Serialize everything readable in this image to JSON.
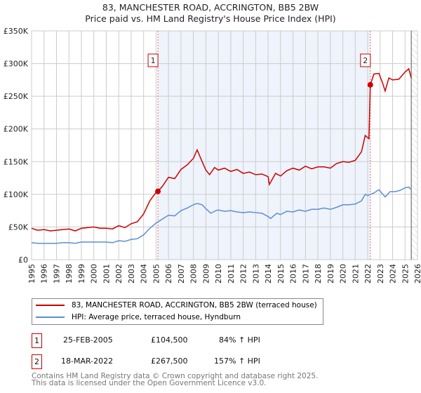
{
  "title": "83, MANCHESTER ROAD, ACCRINGTON, BB5 2BW",
  "subtitle": "Price paid vs. HM Land Registry's House Price Index (HPI)",
  "colors": {
    "property": "#cc0000",
    "hpi": "#5b8fd1",
    "shade": "#eef3fc"
  },
  "chart_data": {
    "type": "line",
    "title": "83, MANCHESTER ROAD, ACCRINGTON, BB5 2BW",
    "xlim": [
      1995,
      2026
    ],
    "ylim": [
      0,
      350000
    ],
    "y_ticks": [
      {
        "v": 0,
        "label": "£0"
      },
      {
        "v": 50000,
        "label": "£50K"
      },
      {
        "v": 100000,
        "label": "£100K"
      },
      {
        "v": 150000,
        "label": "£150K"
      },
      {
        "v": 200000,
        "label": "£200K"
      },
      {
        "v": 250000,
        "label": "£250K"
      },
      {
        "v": 300000,
        "label": "£300K"
      },
      {
        "v": 350000,
        "label": "£350K"
      }
    ],
    "x_ticks": [
      "1995",
      "1996",
      "1997",
      "1998",
      "1999",
      "2000",
      "2001",
      "2002",
      "2003",
      "2004",
      "2005",
      "2006",
      "2007",
      "2008",
      "2009",
      "2010",
      "2011",
      "2012",
      "2013",
      "2014",
      "2015",
      "2016",
      "2017",
      "2018",
      "2019",
      "2020",
      "2021",
      "2022",
      "2023",
      "2024",
      "2025",
      "2026"
    ],
    "grid": true,
    "series": [
      {
        "name": "83, MANCHESTER ROAD, ACCRINGTON, BB5 2BW (terraced house)",
        "x": [
          1995,
          1995.5,
          1996,
          1996.5,
          1997,
          1997.5,
          1998,
          1998.5,
          1999,
          1999.5,
          2000,
          2000.5,
          2001,
          2001.5,
          2002,
          2002.5,
          2003,
          2003.5,
          2004,
          2004.5,
          2005,
          2005.15,
          2005.5,
          2006,
          2006.5,
          2007,
          2007.5,
          2008,
          2008.3,
          2008.7,
          2009,
          2009.3,
          2009.7,
          2010,
          2010.5,
          2011,
          2011.5,
          2012,
          2012.5,
          2013,
          2013.5,
          2014,
          2014.1,
          2014.6,
          2015,
          2015.5,
          2016,
          2016.5,
          2017,
          2017.5,
          2018,
          2018.5,
          2019,
          2019.5,
          2020,
          2020.5,
          2021,
          2021.5,
          2021.8,
          2022.1,
          2022.21,
          2022.5,
          2022.9,
          2023.2,
          2023.4,
          2023.7,
          2024,
          2024.5,
          2025,
          2025.3,
          2025.5
        ],
        "values": [
          48000,
          45000,
          46000,
          44000,
          45000,
          46000,
          47000,
          44000,
          48000,
          49000,
          50000,
          48000,
          48000,
          47000,
          52000,
          49000,
          55000,
          58000,
          70000,
          90000,
          103000,
          104500,
          112000,
          126000,
          124000,
          138000,
          145000,
          155000,
          168000,
          150000,
          137000,
          130000,
          141000,
          137000,
          140000,
          135000,
          138000,
          132000,
          134000,
          130000,
          131000,
          127000,
          115000,
          132000,
          128000,
          136000,
          140000,
          137000,
          143000,
          139000,
          142000,
          142000,
          140000,
          147000,
          150000,
          149000,
          152000,
          165000,
          190000,
          185000,
          267500,
          284000,
          285000,
          270000,
          258000,
          278000,
          275000,
          276000,
          287000,
          292000,
          278000
        ]
      },
      {
        "name": "HPI: Average price, terraced house, Hyndburn",
        "x": [
          1995,
          1995.5,
          1996,
          1996.5,
          1997,
          1997.5,
          1998,
          1998.5,
          1999,
          1999.5,
          2000,
          2000.5,
          2001,
          2001.5,
          2002,
          2002.5,
          2003,
          2003.5,
          2004,
          2004.5,
          2005,
          2005.5,
          2006,
          2006.5,
          2007,
          2007.5,
          2008,
          2008.3,
          2008.7,
          2009,
          2009.4,
          2009.8,
          2010,
          2010.5,
          2011,
          2011.5,
          2012,
          2012.5,
          2013,
          2013.5,
          2014,
          2014.2,
          2014.7,
          2015,
          2015.5,
          2016,
          2016.5,
          2017,
          2017.5,
          2018,
          2018.5,
          2019,
          2019.5,
          2020,
          2020.5,
          2021,
          2021.5,
          2021.8,
          2022,
          2022.5,
          2022.9,
          2023.4,
          2023.8,
          2024.2,
          2024.6,
          2025,
          2025.3,
          2025.5
        ],
        "values": [
          26000,
          25000,
          25000,
          25000,
          25000,
          26000,
          26000,
          25000,
          27000,
          27000,
          27000,
          27000,
          27000,
          26000,
          29000,
          28000,
          31000,
          32000,
          38000,
          48000,
          56000,
          62000,
          68000,
          67000,
          75000,
          79000,
          84000,
          86000,
          84000,
          78000,
          71000,
          75000,
          76000,
          74000,
          75000,
          73000,
          72000,
          73000,
          72000,
          71000,
          66000,
          63000,
          71000,
          69000,
          74000,
          73000,
          76000,
          74000,
          77000,
          77000,
          79000,
          77000,
          80000,
          84000,
          84000,
          85000,
          90000,
          100000,
          98000,
          102000,
          107000,
          96000,
          104000,
          104000,
          106000,
          110000,
          111000,
          107000
        ]
      }
    ],
    "transactions": [
      {
        "id": "1",
        "x": 2005.15,
        "date": "25-FEB-2005",
        "price": 104500,
        "price_label": "£104,500",
        "hpi_label": "84% ↑ HPI"
      },
      {
        "id": "2",
        "x": 2022.21,
        "date": "18-MAR-2022",
        "price": 267500,
        "price_label": "£267,500",
        "hpi_label": "157% ↑ HPI"
      }
    ],
    "forecast_start": 2025.5
  },
  "footer": [
    "Contains HM Land Registry data © Crown copyright and database right 2025.",
    "This data is licensed under the Open Government Licence v3.0."
  ]
}
